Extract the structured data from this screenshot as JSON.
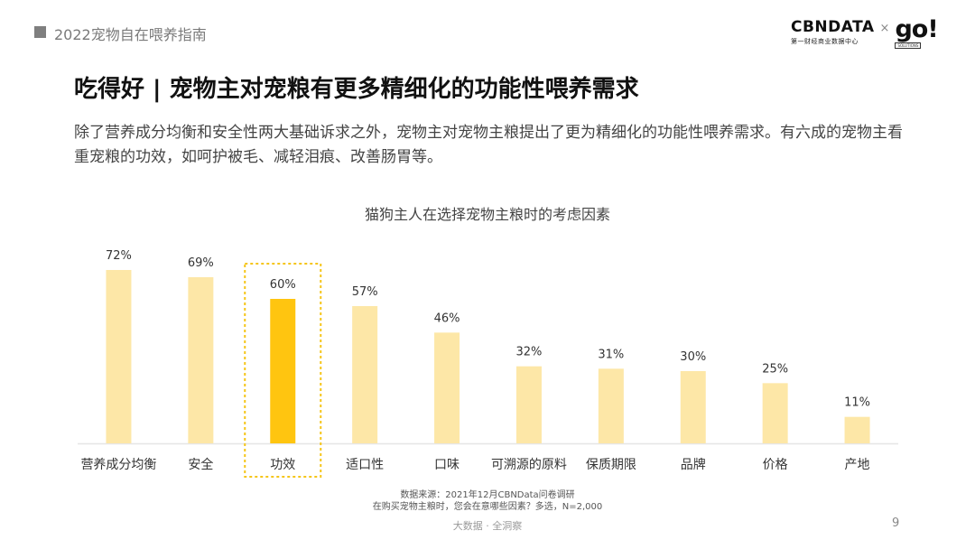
{
  "header": {
    "title": "2022宠物自在喂养指南"
  },
  "logo": {
    "brand": "CBNDATA",
    "brand_sub": "第一财经商业数据中心",
    "separator": "×",
    "partner": "go!",
    "partner_sub": "SOLUTIONS"
  },
  "slide": {
    "title": "吃得好 | 宠物主对宠粮有更多精细化的功能性喂养需求",
    "description": "除了营养成分均衡和安全性两大基础诉求之外，宠物主对宠物主粮提出了更为精细化的功能性喂养需求。有六成的宠物主看重宠粮的功效，如呵护被毛、减轻泪痕、改善肠胃等。"
  },
  "chart_data": {
    "type": "bar",
    "title": "猫狗主人在选择宠物主粮时的考虑因素",
    "categories": [
      "营养成分均衡",
      "安全",
      "功效",
      "适口性",
      "口味",
      "可溯源的原料",
      "保质期限",
      "品牌",
      "价格",
      "产地"
    ],
    "values": [
      72,
      69,
      60,
      57,
      46,
      32,
      31,
      30,
      25,
      11
    ],
    "value_suffix": "%",
    "highlight_index": 2,
    "colors": {
      "bar": "#fde7a7",
      "highlight": "#ffc510",
      "highlight_border": "#f5c518",
      "baseline": "#e6e6e6"
    },
    "ylim": [
      0,
      75
    ],
    "grid": false,
    "xlabel": "",
    "ylabel": ""
  },
  "source": {
    "line1": "数据来源：2021年12月CBNData问卷调研",
    "line2": "在购买宠物主粮时，您会在意哪些因素？多选，N=2,000"
  },
  "footer": {
    "text": "大数据 · 全洞察",
    "page_number": "9"
  }
}
